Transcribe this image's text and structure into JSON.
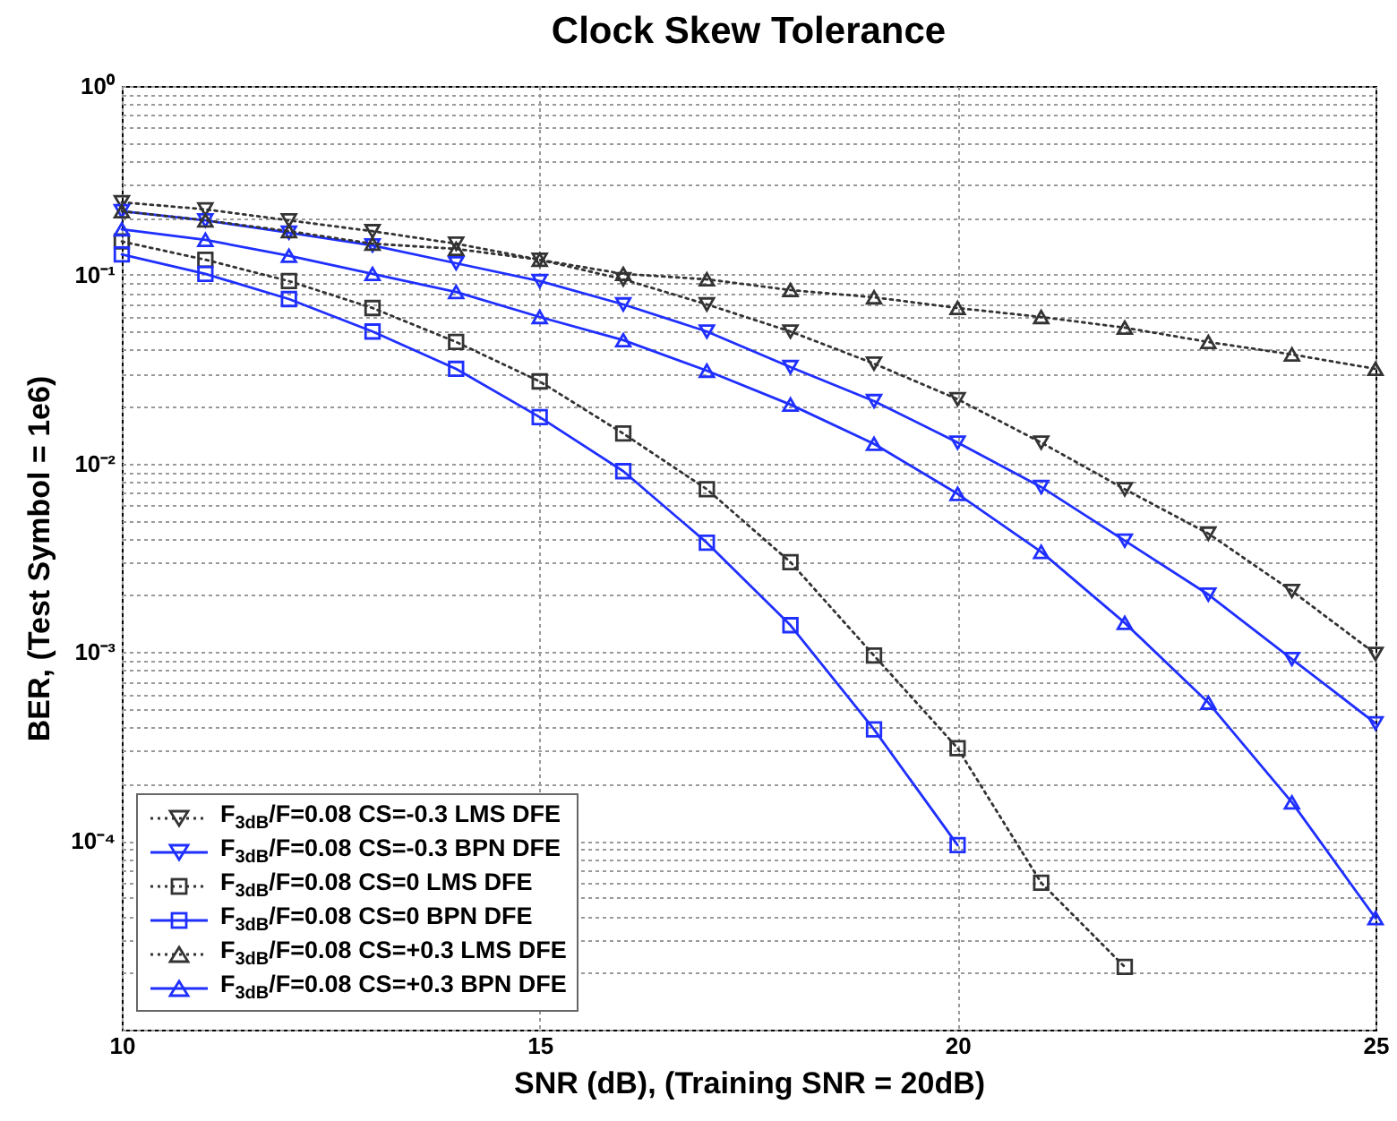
{
  "chart_data": {
    "type": "line",
    "title": "Clock Skew Tolerance",
    "xlabel": "SNR (dB), (Training SNR = 20dB)",
    "ylabel": "BER, (Test Symbol = 1e6)",
    "x": [
      10,
      11,
      12,
      13,
      14,
      15,
      16,
      17,
      18,
      19,
      20,
      21,
      22,
      23,
      24,
      25
    ],
    "series": [
      {
        "name": "F$_{3dB}$/F=0.08 CS=-0.3 LMS DFE",
        "color": "#333333",
        "marker": "triangle-down",
        "line_style": "dotted",
        "values": [
          0.242,
          0.222,
          0.194,
          0.17,
          0.146,
          0.12,
          0.0945,
          0.0696,
          0.05,
          0.0338,
          0.0219,
          0.0129,
          0.0073,
          0.00425,
          0.00211,
          0.00098
        ]
      },
      {
        "name": "F$_{3dB}$/F=0.08 CS=-0.3 BPN DFE",
        "color": "#1f2fff",
        "marker": "triangle-down",
        "line_style": "solid",
        "values": [
          0.217,
          0.194,
          0.167,
          0.143,
          0.115,
          0.0925,
          0.0696,
          0.05,
          0.0324,
          0.0214,
          0.0129,
          0.0075,
          0.0039,
          0.00202,
          0.00092,
          0.00042
        ]
      },
      {
        "name": "F$_{3dB}$/F=0.08 CS=0 LMS DFE",
        "color": "#333333",
        "marker": "square",
        "line_style": "dotted",
        "x": [
          10,
          11,
          12,
          13,
          14,
          15,
          16,
          17,
          18,
          19,
          20,
          21,
          22
        ],
        "values": [
          0.15,
          0.12,
          0.0925,
          0.0666,
          0.044,
          0.0272,
          0.0144,
          0.0073,
          0.003,
          0.00096,
          0.00031,
          6e-05,
          2.15e-05
        ]
      },
      {
        "name": "F$_{3dB}$/F=0.08 CS=0 BPN DFE",
        "color": "#1f2fff",
        "marker": "square",
        "line_style": "solid",
        "x": [
          10,
          11,
          12,
          13,
          14,
          15,
          16,
          17,
          18,
          19,
          20
        ],
        "values": [
          0.128,
          0.101,
          0.0743,
          0.05,
          0.0317,
          0.0176,
          0.0091,
          0.0038,
          0.00139,
          0.00039,
          9.5e-05
        ]
      },
      {
        "name": "F$_{3dB}$/F=0.08 CS=+0.3 LMS DFE",
        "color": "#333333",
        "marker": "triangle",
        "line_style": "dotted",
        "values": [
          0.217,
          0.194,
          0.17,
          0.146,
          0.137,
          0.12,
          0.101,
          0.0945,
          0.0829,
          0.0759,
          0.0666,
          0.0597,
          0.0524,
          0.044,
          0.0378,
          0.0317
        ]
      },
      {
        "name": "F$_{3dB}$/F=0.08 CS=+0.3 BPN DFE",
        "color": "#1f2fff",
        "marker": "triangle",
        "line_style": "solid",
        "values": [
          0.174,
          0.153,
          0.126,
          0.101,
          0.081,
          0.0597,
          0.045,
          0.031,
          0.0205,
          0.0127,
          0.0069,
          0.0034,
          0.00143,
          0.00054,
          0.00016,
          3.9e-05
        ]
      }
    ],
    "log": "y",
    "xlim": [
      10,
      25
    ],
    "xticks": [
      10,
      15,
      20,
      25
    ],
    "ylim": [
      1e-05,
      1
    ],
    "yticks": [
      {
        "value": 1,
        "label": "10⁰"
      },
      {
        "value": 0.1,
        "label": "10⁻¹"
      },
      {
        "value": 0.01,
        "label": "10⁻²"
      },
      {
        "value": 0.001,
        "label": "10⁻³"
      },
      {
        "value": 0.0001,
        "label": "10⁻⁴"
      },
      {
        "value": 1e-05,
        "label": null
      },
      {
        "value": 0.9,
        "label": null
      },
      {
        "value": 0.8,
        "label": null
      },
      {
        "value": 0.7,
        "label": null
      },
      {
        "value": 0.6,
        "label": null
      },
      {
        "value": 0.5,
        "label": null
      },
      {
        "value": 0.4,
        "label": null
      },
      {
        "value": 0.3,
        "label": null
      },
      {
        "value": 0.2,
        "label": null
      },
      {
        "value": 0.09,
        "label": null
      },
      {
        "value": 0.08,
        "label": null
      },
      {
        "value": 0.07,
        "label": null
      },
      {
        "value": 0.06,
        "label": null
      },
      {
        "value": 0.05,
        "label": null
      },
      {
        "value": 0.04,
        "label": null
      },
      {
        "value": 0.03,
        "label": null
      },
      {
        "value": 0.02,
        "label": null
      },
      {
        "value": 0.009,
        "label": null
      },
      {
        "value": 0.008,
        "label": null
      },
      {
        "value": 0.007,
        "label": null
      },
      {
        "value": 0.006,
        "label": null
      },
      {
        "value": 0.005,
        "label": null
      },
      {
        "value": 0.004,
        "label": null
      },
      {
        "value": 0.003,
        "label": null
      },
      {
        "value": 0.002,
        "label": null
      },
      {
        "value": 0.0009,
        "label": null
      },
      {
        "value": 0.0008,
        "label": null
      },
      {
        "value": 0.0007,
        "label": null
      },
      {
        "value": 0.0006,
        "label": null
      },
      {
        "value": 0.0005,
        "label": null
      },
      {
        "value": 0.0004,
        "label": null
      },
      {
        "value": 0.0003,
        "label": null
      },
      {
        "value": 0.0002,
        "label": null
      },
      {
        "value": 9e-05,
        "label": null
      },
      {
        "value": 8e-05,
        "label": null
      },
      {
        "value": 7e-05,
        "label": null
      },
      {
        "value": 6e-05,
        "label": null
      },
      {
        "value": 5e-05,
        "label": null
      },
      {
        "value": 4e-05,
        "label": null
      },
      {
        "value": 3e-05,
        "label": null
      },
      {
        "value": 2e-05,
        "label": null
      }
    ],
    "grid": true,
    "legend": "bottom left"
  }
}
